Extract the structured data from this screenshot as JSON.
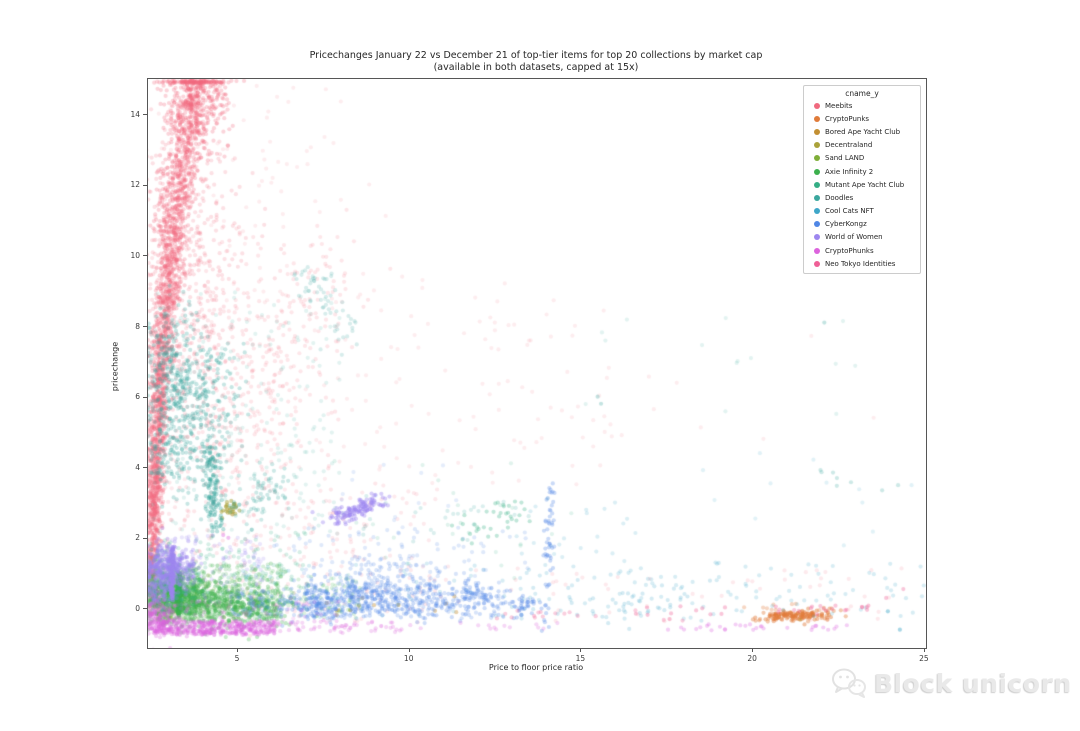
{
  "title": {
    "line1": "Pricechanges January 22 vs December 21 of top-tier items for top 20 collections by market cap",
    "line2": "(available in both datasets, capped at 15x)"
  },
  "axes": {
    "xlabel": "Price to floor price ratio",
    "ylabel": "pricechange"
  },
  "watermark": {
    "text": "Block unicorn",
    "icon": "chat-bubbles-icon"
  },
  "chart_data": {
    "type": "scatter",
    "title": "Pricechanges January 22 vs December 21 of top-tier items for top 20 collections by market cap",
    "subtitle": "(available in both datasets, capped at 15x)",
    "xlabel": "Price to floor price ratio",
    "ylabel": "pricechange",
    "xlim": [
      2.41,
      25.06
    ],
    "ylim": [
      -1.12,
      15.0
    ],
    "x_ticks": [
      5,
      10,
      15,
      20,
      25
    ],
    "y_ticks": [
      0,
      2,
      4,
      6,
      8,
      10,
      12,
      14
    ],
    "grid": false,
    "legend": {
      "title": "cname_y",
      "position": "upper right"
    },
    "point_alpha": 0.28,
    "point_radius": 2.1,
    "series": [
      {
        "name": "Meebits",
        "color": "#f0697e",
        "clusters": [
          {
            "t": "streak",
            "x1": 2.45,
            "y1": 0.3,
            "x2": 2.62,
            "y2": 3.2,
            "jx": 0.1,
            "jy": 0.35,
            "n": 350
          },
          {
            "t": "streak",
            "x1": 2.55,
            "y1": 3.0,
            "x2": 2.78,
            "y2": 6.5,
            "jx": 0.13,
            "jy": 0.4,
            "n": 550
          },
          {
            "t": "streak",
            "x1": 2.75,
            "y1": 6.5,
            "x2": 3.15,
            "y2": 10.8,
            "jx": 0.18,
            "jy": 0.4,
            "n": 650
          },
          {
            "t": "streak",
            "x1": 3.1,
            "y1": 10.8,
            "x2": 3.85,
            "y2": 14.9,
            "jx": 0.28,
            "jy": 0.4,
            "n": 650
          },
          {
            "t": "gauss",
            "cx": 3.8,
            "cy": 14.6,
            "sx": 0.5,
            "sy": 0.7,
            "n": 350,
            "ymax": 14.95
          },
          {
            "t": "gauss",
            "cx": 3.4,
            "cy": 9.5,
            "sx": 0.9,
            "sy": 2.6,
            "n": 550,
            "a": 0.2
          },
          {
            "t": "gauss",
            "cx": 4.6,
            "cy": 6.0,
            "sx": 1.4,
            "sy": 2.6,
            "n": 350,
            "a": 0.16
          },
          {
            "t": "streak",
            "x1": 4.3,
            "y1": 3.8,
            "x2": 8.2,
            "y2": 10.2,
            "jx": 0.55,
            "jy": 0.7,
            "n": 180,
            "a": 0.16
          },
          {
            "t": "band",
            "x": [
              2.42,
              11.0
            ],
            "y": [
              -0.4,
              3.5
            ],
            "n": 260,
            "a": 0.14
          },
          {
            "t": "band",
            "x": [
              2.42,
              16.0
            ],
            "y": [
              3.5,
              9.5
            ],
            "n": 150,
            "a": 0.12
          },
          {
            "t": "band",
            "x": [
              9.0,
              24.8
            ],
            "y": [
              -0.45,
              1.2
            ],
            "n": 60,
            "a": 0.14
          },
          {
            "t": "band",
            "x": [
              12.0,
              24.0
            ],
            "y": [
              4.0,
              8.5
            ],
            "n": 14,
            "a": 0.12
          },
          {
            "t": "gauss",
            "cx": 5.5,
            "cy": 12.5,
            "sx": 1.6,
            "sy": 1.8,
            "n": 80,
            "a": 0.12
          }
        ]
      },
      {
        "name": "CryptoPunks",
        "color": "#e07b3a",
        "clusters": [
          {
            "t": "gauss",
            "cx": 21.1,
            "cy": -0.2,
            "sx": 0.45,
            "sy": 0.07,
            "n": 90,
            "a": 0.45
          },
          {
            "t": "streak",
            "x1": 20.2,
            "y1": -0.28,
            "x2": 22.4,
            "y2": -0.12,
            "jx": 0.25,
            "jy": 0.07,
            "n": 60,
            "a": 0.4
          },
          {
            "t": "band",
            "x": [
              19.6,
              22.6
            ],
            "y": [
              -0.05,
              0.15
            ],
            "n": 10,
            "a": 0.3
          }
        ]
      },
      {
        "name": "Bored Ape Yacht Club",
        "color": "#c28f33",
        "clusters": [
          {
            "t": "band",
            "x": [
              6.0,
              12.5
            ],
            "y": [
              -0.2,
              0.35
            ],
            "n": 12,
            "a": 0.4
          },
          {
            "t": "pts",
            "pts": [
              [
                8.3,
                -0.05
              ],
              [
                9.7,
                0.1
              ],
              [
                21.4,
                -0.32
              ]
            ],
            "a": 0.5
          }
        ]
      },
      {
        "name": "Decentraland",
        "color": "#aaa23a",
        "clusters": [
          {
            "t": "gauss",
            "cx": 4.78,
            "cy": 2.82,
            "sx": 0.16,
            "sy": 0.13,
            "n": 26,
            "a": 0.5
          },
          {
            "t": "band",
            "x": [
              2.5,
              5.5
            ],
            "y": [
              -0.2,
              1.0
            ],
            "n": 14,
            "a": 0.25
          }
        ]
      },
      {
        "name": "Sand LAND",
        "color": "#7fae38",
        "clusters": [
          {
            "t": "gauss",
            "cx": 2.75,
            "cy": 0.2,
            "sx": 0.35,
            "sy": 0.3,
            "n": 90,
            "a": 0.3
          },
          {
            "t": "band",
            "x": [
              2.45,
              5.2
            ],
            "y": [
              -0.3,
              0.9
            ],
            "n": 70,
            "a": 0.2
          }
        ]
      },
      {
        "name": "Axie Infinity 2",
        "color": "#3cb04d",
        "clusters": [
          {
            "t": "gauss",
            "cx": 3.2,
            "cy": 0.3,
            "sx": 0.6,
            "sy": 0.35,
            "n": 900
          },
          {
            "t": "gauss",
            "cx": 4.5,
            "cy": 0.15,
            "sx": 0.8,
            "sy": 0.3,
            "n": 420
          },
          {
            "t": "band",
            "x": [
              2.42,
              6.3
            ],
            "y": [
              -0.35,
              1.25
            ],
            "n": 300,
            "a": 0.2
          },
          {
            "t": "band",
            "x": [
              5.5,
              8.6
            ],
            "y": [
              -0.3,
              0.9
            ],
            "n": 90,
            "a": 0.18
          },
          {
            "t": "streak",
            "x1": 3.3,
            "y1": -0.1,
            "x2": 3.32,
            "y2": 1.0,
            "jx": 0.03,
            "jy": 0.1,
            "n": 120,
            "a": 0.5
          },
          {
            "t": "gauss",
            "cx": 5.7,
            "cy": 0.1,
            "sx": 0.35,
            "sy": 0.3,
            "n": 100,
            "a": 0.3
          }
        ]
      },
      {
        "name": "Mutant Ape Yacht Club",
        "color": "#35ae85",
        "clusters": [
          {
            "t": "gauss",
            "cx": 2.9,
            "cy": 0.75,
            "sx": 0.45,
            "sy": 0.45,
            "n": 160
          },
          {
            "t": "band",
            "x": [
              2.45,
              7.0
            ],
            "y": [
              0.0,
              2.2
            ],
            "n": 130,
            "a": 0.2
          },
          {
            "t": "streak",
            "x1": 11.4,
            "y1": 1.9,
            "x2": 13.3,
            "y2": 2.9,
            "jx": 0.3,
            "jy": 0.22,
            "n": 35,
            "a": 0.3
          },
          {
            "t": "band",
            "x": [
              7.0,
              15.0
            ],
            "y": [
              0.8,
              4.2
            ],
            "n": 30,
            "a": 0.15
          }
        ]
      },
      {
        "name": "Doodles",
        "color": "#3aa79e",
        "clusters": [
          {
            "t": "gauss",
            "cx": 3.6,
            "cy": 5.9,
            "sx": 0.75,
            "sy": 1.0,
            "n": 380
          },
          {
            "t": "gauss",
            "cx": 2.95,
            "cy": 6.9,
            "sx": 0.45,
            "sy": 0.8,
            "n": 160
          },
          {
            "t": "gauss",
            "cx": 3.1,
            "cy": 4.4,
            "sx": 0.5,
            "sy": 0.6,
            "n": 120
          },
          {
            "t": "streak",
            "x1": 4.18,
            "y1": 4.6,
            "x2": 4.4,
            "y2": 2.2,
            "jx": 0.12,
            "jy": 0.25,
            "n": 130,
            "a": 0.35
          },
          {
            "t": "streak",
            "x1": 4.9,
            "y1": 2.7,
            "x2": 6.3,
            "y2": 3.6,
            "jx": 0.3,
            "jy": 0.3,
            "n": 70,
            "a": 0.25
          },
          {
            "t": "band",
            "x": [
              2.5,
              8.0
            ],
            "y": [
              2.0,
              9.0
            ],
            "n": 220,
            "a": 0.14
          },
          {
            "t": "streak",
            "x1": 6.9,
            "y1": 9.7,
            "x2": 8.3,
            "y2": 7.7,
            "jx": 0.25,
            "jy": 0.3,
            "n": 60,
            "a": 0.2
          },
          {
            "t": "band",
            "x": [
              8.5,
              13.5
            ],
            "y": [
              1.8,
              3.2
            ],
            "n": 25,
            "a": 0.18
          },
          {
            "t": "band",
            "x": [
              15.0,
              23.0
            ],
            "y": [
              5.5,
              8.3
            ],
            "n": 14,
            "a": 0.14
          },
          {
            "t": "streak",
            "x1": 20.4,
            "y1": 4.4,
            "x2": 24.6,
            "y2": 3.1,
            "jx": 0.3,
            "jy": 0.25,
            "n": 8,
            "a": 0.25
          },
          {
            "t": "pts",
            "pts": [
              [
                22.1,
                8.1
              ],
              [
                15.5,
                6.0
              ],
              [
                15.6,
                5.8
              ]
            ],
            "a": 0.3
          }
        ]
      },
      {
        "name": "Cool Cats NFT",
        "color": "#3ea6c8",
        "clusters": [
          {
            "t": "band",
            "x": [
              5.0,
              25.0
            ],
            "y": [
              -0.3,
              1.3
            ],
            "n": 170,
            "a": 0.2
          },
          {
            "t": "gauss",
            "cx": 16.2,
            "cy": 0.15,
            "sx": 1.3,
            "sy": 0.35,
            "n": 50,
            "a": 0.22
          },
          {
            "t": "band",
            "x": [
              13.0,
              17.0
            ],
            "y": [
              1.2,
              3.2
            ],
            "n": 22,
            "a": 0.18
          },
          {
            "t": "band",
            "x": [
              18.0,
              24.8
            ],
            "y": [
              1.5,
              4.5
            ],
            "n": 12,
            "a": 0.15
          },
          {
            "t": "pts",
            "pts": [
              [
                23.95,
                -0.08
              ],
              [
                24.3,
                -0.6
              ]
            ],
            "a": 0.45
          }
        ]
      },
      {
        "name": "CyberKongz",
        "color": "#4f86e5",
        "clusters": [
          {
            "t": "gauss",
            "cx": 7.3,
            "cy": 0.15,
            "sx": 0.5,
            "sy": 0.25,
            "n": 160
          },
          {
            "t": "gauss",
            "cx": 8.6,
            "cy": 0.3,
            "sx": 0.6,
            "sy": 0.28,
            "n": 160
          },
          {
            "t": "gauss",
            "cx": 10.2,
            "cy": 0.2,
            "sx": 0.7,
            "sy": 0.3,
            "n": 130
          },
          {
            "t": "gauss",
            "cx": 11.8,
            "cy": 0.3,
            "sx": 0.55,
            "sy": 0.25,
            "n": 90
          },
          {
            "t": "band",
            "x": [
              6.2,
              12.8
            ],
            "y": [
              -0.3,
              0.8
            ],
            "n": 170,
            "a": 0.22
          },
          {
            "t": "gauss",
            "cx": 9.3,
            "cy": 1.0,
            "sx": 0.9,
            "sy": 0.3,
            "n": 90,
            "a": 0.22
          },
          {
            "t": "streak",
            "x1": 14.05,
            "y1": -0.4,
            "x2": 14.12,
            "y2": 3.4,
            "jx": 0.07,
            "jy": 0.25,
            "n": 55,
            "a": 0.3
          },
          {
            "t": "band",
            "x": [
              6.0,
              13.5
            ],
            "y": [
              0.9,
              2.3
            ],
            "n": 70,
            "a": 0.18
          },
          {
            "t": "band",
            "x": [
              8.0,
              12.0
            ],
            "y": [
              2.3,
              4.2
            ],
            "n": 14,
            "a": 0.15
          },
          {
            "t": "band",
            "x": [
              4.8,
              6.3
            ],
            "y": [
              -0.25,
              0.5
            ],
            "n": 60,
            "a": 0.22
          },
          {
            "t": "gauss",
            "cx": 13.4,
            "cy": 0.1,
            "sx": 0.3,
            "sy": 0.2,
            "n": 40,
            "a": 0.3
          }
        ]
      },
      {
        "name": "World of Women",
        "color": "#9d86ef",
        "clusters": [
          {
            "t": "gauss",
            "cx": 2.95,
            "cy": 1.15,
            "sx": 0.42,
            "sy": 0.33,
            "n": 430,
            "a": 0.32
          },
          {
            "t": "streak",
            "x1": 3.09,
            "y1": 0.35,
            "x2": 3.13,
            "y2": 1.65,
            "jx": 0.03,
            "jy": 0.12,
            "n": 110,
            "a": 0.5
          },
          {
            "t": "streak",
            "x1": 7.85,
            "y1": 2.5,
            "x2": 9.15,
            "y2": 3.1,
            "jx": 0.2,
            "jy": 0.12,
            "n": 140,
            "a": 0.4
          },
          {
            "t": "band",
            "x": [
              2.42,
              5.8
            ],
            "y": [
              0.1,
              2.1
            ],
            "n": 130,
            "a": 0.2
          },
          {
            "t": "gauss",
            "cx": 2.6,
            "cy": 0.5,
            "sx": 0.25,
            "sy": 0.35,
            "n": 120,
            "a": 0.3
          }
        ]
      },
      {
        "name": "CryptoPhunks",
        "color": "#dc63dd",
        "clusters": [
          {
            "t": "band",
            "x": [
              2.42,
              6.1
            ],
            "y": [
              -0.75,
              -0.35
            ],
            "n": 420,
            "a": 0.3
          },
          {
            "t": "gauss",
            "cx": 2.7,
            "cy": -0.25,
            "sx": 0.3,
            "sy": 0.3,
            "n": 160,
            "a": 0.3
          },
          {
            "t": "band",
            "x": [
              6.0,
              9.8
            ],
            "y": [
              -0.7,
              -0.35
            ],
            "n": 60,
            "a": 0.25
          },
          {
            "t": "band",
            "x": [
              17.5,
              22.8
            ],
            "y": [
              -0.62,
              -0.45
            ],
            "n": 30,
            "a": 0.3
          },
          {
            "t": "band",
            "x": [
              2.42,
              8.0
            ],
            "y": [
              -0.35,
              0.2
            ],
            "n": 70,
            "a": 0.18
          },
          {
            "t": "band",
            "x": [
              10.0,
              14.5
            ],
            "y": [
              -0.6,
              -0.4
            ],
            "n": 14,
            "a": 0.25
          },
          {
            "t": "pts",
            "pts": [
              [
                4.6,
                2.08
              ],
              [
                4.75,
                2.0
              ],
              [
                8.3,
                -0.55
              ],
              [
                9.2,
                -0.5
              ]
            ],
            "a": 0.4
          }
        ]
      },
      {
        "name": "Neo Tokyo Identities",
        "color": "#ef5f96",
        "clusters": [
          {
            "t": "band",
            "x": [
              16.6,
              23.4
            ],
            "y": [
              -0.18,
              0.08
            ],
            "n": 30,
            "a": 0.35
          },
          {
            "t": "band",
            "x": [
              12.5,
              18.0
            ],
            "y": [
              -0.35,
              -0.05
            ],
            "n": 18,
            "a": 0.3
          },
          {
            "t": "pts",
            "pts": [
              [
                23.9,
                0.3
              ],
              [
                24.4,
                0.55
              ]
            ],
            "a": 0.35
          }
        ]
      }
    ]
  }
}
